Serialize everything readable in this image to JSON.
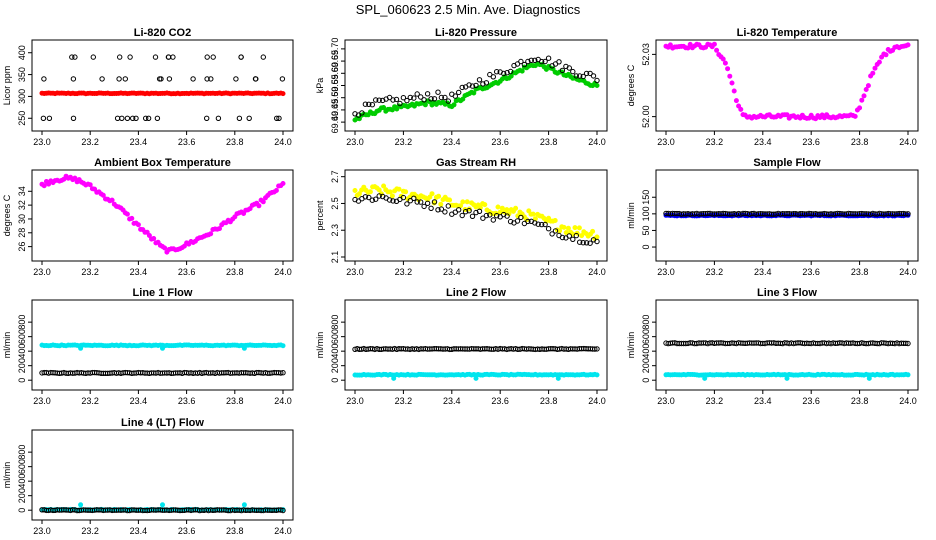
{
  "title": "SPL_060623  2.5 Min. Ave. Diagnostics",
  "chart_data": [
    {
      "type": "scatter",
      "title": "Li-820 CO2",
      "ylabel": "Licor ppm",
      "xlim": [
        23.0,
        24.0
      ],
      "ylim": [
        230,
        420
      ],
      "x_ticks": [
        "23.0",
        "23.2",
        "23.4",
        "23.6",
        "23.8",
        "24.0"
      ],
      "y_ticks": [
        "250",
        "300",
        "350",
        "400"
      ],
      "series": [
        {
          "name": "red",
          "color": "#ff0000",
          "values_desc": "flat ~ 307 ppm",
          "level": 307
        },
        {
          "name": "black",
          "color": "#000000",
          "values_desc": "scattered outliers at ~250, ~340, ~390 ppm",
          "levels": [
            250,
            340,
            390
          ]
        }
      ]
    },
    {
      "type": "scatter",
      "title": "Li-820 Pressure",
      "ylabel": "kPa",
      "xlim": [
        23.0,
        24.0
      ],
      "ylim": [
        69.38,
        69.72
      ],
      "x_ticks": [
        "23.0",
        "23.2",
        "23.4",
        "23.6",
        "23.8",
        "24.0"
      ],
      "y_ticks": [
        "69.40",
        "69.45",
        "69.50",
        "69.55",
        "69.60",
        "69.65",
        "69.70"
      ],
      "series": [
        {
          "name": "green",
          "color": "#00cc00",
          "x": [
            23.0,
            23.1,
            23.2,
            23.3,
            23.4,
            23.5,
            23.6,
            23.7,
            23.75,
            23.8,
            23.9,
            24.0
          ],
          "y": [
            69.41,
            69.45,
            69.46,
            69.48,
            69.47,
            69.53,
            69.57,
            69.62,
            69.64,
            69.62,
            69.58,
            69.55
          ]
        },
        {
          "name": "black",
          "color": "#000000",
          "values_desc": "scattered around green series, ~0.03 kPa higher"
        }
      ]
    },
    {
      "type": "scatter",
      "title": "Li-820 Temperature",
      "ylabel": "degrees C",
      "xlim": [
        23.0,
        24.0
      ],
      "ylim": [
        51.995,
        52.035
      ],
      "x_ticks": [
        "23.0",
        "23.2",
        "23.4",
        "23.6",
        "23.8",
        "24.0"
      ],
      "y_ticks": [
        "52.00",
        "52.03"
      ],
      "series": [
        {
          "name": "magenta",
          "color": "#ff00ff",
          "x": [
            23.0,
            23.2,
            23.25,
            23.3,
            23.32,
            23.78,
            23.8,
            23.85,
            23.9,
            23.95,
            24.0
          ],
          "y": [
            52.034,
            52.034,
            52.025,
            52.005,
            52.0,
            52.0,
            52.005,
            52.02,
            52.03,
            52.034,
            52.034
          ]
        }
      ]
    },
    {
      "type": "scatter",
      "title": "Ambient Box Temperature",
      "ylabel": "degrees C",
      "xlim": [
        23.0,
        24.0
      ],
      "ylim": [
        24.5,
        36.5
      ],
      "x_ticks": [
        "23.0",
        "23.2",
        "23.4",
        "23.6",
        "23.8",
        "24.0"
      ],
      "y_ticks": [
        "26",
        "28",
        "30",
        "32",
        "34"
      ],
      "series": [
        {
          "name": "magenta",
          "color": "#ff00ff",
          "x": [
            23.0,
            23.05,
            23.1,
            23.15,
            23.2,
            23.3,
            23.4,
            23.5,
            23.53,
            23.6,
            23.7,
            23.8,
            23.9,
            24.0
          ],
          "y": [
            35.0,
            35.6,
            35.9,
            35.6,
            34.7,
            32.3,
            29.0,
            25.8,
            25.3,
            26.3,
            28.0,
            30.3,
            32.2,
            35.0
          ]
        }
      ]
    },
    {
      "type": "scatter",
      "title": "Gas Stream RH",
      "ylabel": "percent",
      "xlim": [
        23.0,
        24.0
      ],
      "ylim": [
        2.1,
        2.72
      ],
      "x_ticks": [
        "23.0",
        "23.2",
        "23.4",
        "23.6",
        "23.8",
        "24.0"
      ],
      "y_ticks": [
        "2.1",
        "2.3",
        "2.5",
        "2.7"
      ],
      "series": [
        {
          "name": "yellow",
          "color": "#ffff00",
          "x": [
            23.0,
            23.1,
            23.2,
            23.3,
            23.4,
            23.5,
            23.6,
            23.7,
            23.8,
            23.9,
            24.0
          ],
          "y": [
            2.58,
            2.6,
            2.57,
            2.55,
            2.5,
            2.47,
            2.45,
            2.42,
            2.36,
            2.3,
            2.27
          ]
        },
        {
          "name": "black",
          "color": "#000000",
          "values_desc": "scattered ~0.05 below yellow series"
        }
      ]
    },
    {
      "type": "scatter",
      "title": "Sample Flow",
      "ylabel": "ml/min",
      "xlim": [
        23.0,
        24.0
      ],
      "ylim": [
        -30,
        220
      ],
      "x_ticks": [
        "23.0",
        "23.2",
        "23.4",
        "23.6",
        "23.8",
        "24.0"
      ],
      "y_ticks": [
        "0",
        "50",
        "100",
        "150"
      ],
      "series": [
        {
          "name": "blue",
          "color": "#0000ff",
          "level": 95
        },
        {
          "name": "black",
          "color": "#000000",
          "level": 100
        }
      ]
    },
    {
      "type": "scatter",
      "title": "Line 1 Flow",
      "ylabel": "ml/min",
      "xlim": [
        23.0,
        24.0
      ],
      "ylim": [
        -80,
        1050
      ],
      "x_ticks": [
        "23.0",
        "23.2",
        "23.4",
        "23.6",
        "23.8",
        "24.0"
      ],
      "y_ticks": [
        "0",
        "200",
        "400",
        "600",
        "800"
      ],
      "series": [
        {
          "name": "cyan",
          "color": "#00e5ee",
          "level": 480
        },
        {
          "name": "black",
          "color": "#000000",
          "level": 100
        }
      ]
    },
    {
      "type": "scatter",
      "title": "Line 2 Flow",
      "ylabel": "ml/min",
      "xlim": [
        23.0,
        24.0
      ],
      "ylim": [
        -80,
        1050
      ],
      "x_ticks": [
        "23.0",
        "23.2",
        "23.4",
        "23.6",
        "23.8",
        "24.0"
      ],
      "y_ticks": [
        "0",
        "200",
        "400",
        "600",
        "800"
      ],
      "series": [
        {
          "name": "cyan",
          "color": "#00e5ee",
          "level": 75
        },
        {
          "name": "black",
          "color": "#000000",
          "level": 430
        }
      ]
    },
    {
      "type": "scatter",
      "title": "Line 3 Flow",
      "ylabel": "ml/min",
      "xlim": [
        23.0,
        24.0
      ],
      "ylim": [
        -80,
        1050
      ],
      "x_ticks": [
        "23.0",
        "23.2",
        "23.4",
        "23.6",
        "23.8",
        "24.0"
      ],
      "y_ticks": [
        "0",
        "200",
        "400",
        "600",
        "800"
      ],
      "series": [
        {
          "name": "cyan",
          "color": "#00e5ee",
          "level": 75
        },
        {
          "name": "black",
          "color": "#000000",
          "level": 510
        }
      ]
    },
    {
      "type": "scatter",
      "title": "Line 4 (LT) Flow",
      "ylabel": "ml/min",
      "xlim": [
        23.0,
        24.0
      ],
      "ylim": [
        -80,
        1050
      ],
      "x_ticks": [
        "23.0",
        "23.2",
        "23.4",
        "23.6",
        "23.8",
        "24.0"
      ],
      "y_ticks": [
        "0",
        "200",
        "400",
        "600",
        "800"
      ],
      "series": [
        {
          "name": "cyan",
          "color": "#00e5ee",
          "level": 5
        },
        {
          "name": "black",
          "color": "#000000",
          "level": 0
        }
      ]
    }
  ]
}
